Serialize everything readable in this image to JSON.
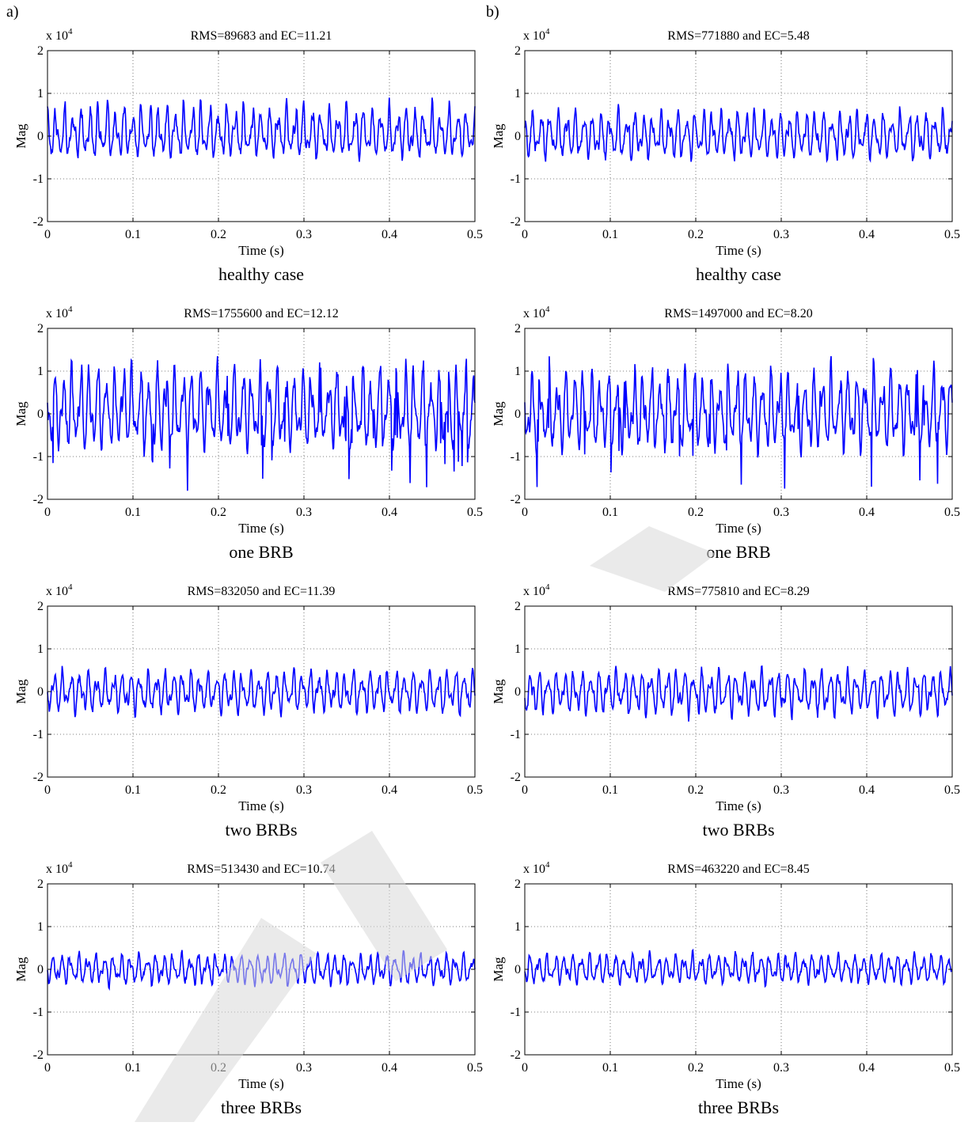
{
  "figure": {
    "panel_labels": [
      "a)",
      "b)"
    ],
    "x_tick_labels": [
      "0",
      "0.1",
      "0.2",
      "0.3",
      "0.4",
      "0.5"
    ],
    "y_tick_labels": [
      "2",
      "1",
      "0",
      "-1",
      "-2"
    ],
    "exponent_base": "x 10",
    "exponent_power": "4",
    "xlabel": "Time (s)",
    "ylabel": "Mag",
    "line_color": "#0000ff"
  },
  "chart_data": [
    {
      "type": "line",
      "column": "a",
      "title": "RMS=89683 and EC=11.21",
      "caption": "healthy case",
      "xlabel": "Time (s)",
      "ylabel": "Mag",
      "xlim": [
        0,
        0.5
      ],
      "ylim": [
        -20000,
        20000
      ],
      "y_scale": "x 10^4",
      "grid": true,
      "approx_amplitude": 6000,
      "min_value": -6000,
      "max_value": 9000
    },
    {
      "type": "line",
      "column": "b",
      "title": "RMS=771880 and EC=5.48",
      "caption": "healthy case",
      "xlabel": "Time (s)",
      "ylabel": "Mag",
      "xlim": [
        0,
        0.5
      ],
      "ylim": [
        -20000,
        20000
      ],
      "y_scale": "x 10^4",
      "grid": true,
      "approx_amplitude": 5000,
      "min_value": -6000,
      "max_value": 7500
    },
    {
      "type": "line",
      "column": "a",
      "title": "RMS=1755600 and EC=12.12",
      "caption": "one BRB",
      "xlabel": "Time (s)",
      "ylabel": "Mag",
      "xlim": [
        0,
        0.5
      ],
      "ylim": [
        -20000,
        20000
      ],
      "y_scale": "x 10^4",
      "grid": true,
      "approx_amplitude": 13000,
      "min_value": -18000,
      "max_value": 13500
    },
    {
      "type": "line",
      "column": "b",
      "title": "RMS=1497000 and EC=8.20",
      "caption": "one BRB",
      "xlabel": "Time (s)",
      "ylabel": "Mag",
      "xlim": [
        0,
        0.5
      ],
      "ylim": [
        -20000,
        20000
      ],
      "y_scale": "x 10^4",
      "grid": true,
      "approx_amplitude": 11000,
      "min_value": -17500,
      "max_value": 13500
    },
    {
      "type": "line",
      "column": "a",
      "title": "RMS=832050 and EC=11.39",
      "caption": "two BRBs",
      "xlabel": "Time (s)",
      "ylabel": "Mag",
      "xlim": [
        0,
        0.5
      ],
      "ylim": [
        -20000,
        20000
      ],
      "y_scale": "x 10^4",
      "grid": true,
      "approx_amplitude": 5000,
      "min_value": -6000,
      "max_value": 6000
    },
    {
      "type": "line",
      "column": "b",
      "title": "RMS=775810 and EC=8.29",
      "caption": "two BRBs",
      "xlabel": "Time (s)",
      "ylabel": "Mag",
      "xlim": [
        0,
        0.5
      ],
      "ylim": [
        -20000,
        20000
      ],
      "y_scale": "x 10^4",
      "grid": true,
      "approx_amplitude": 5000,
      "min_value": -7000,
      "max_value": 6000
    },
    {
      "type": "line",
      "column": "a",
      "title": "RMS=513430 and EC=10.74",
      "caption": "three BRBs",
      "xlabel": "Time (s)",
      "ylabel": "Mag",
      "xlim": [
        0,
        0.5
      ],
      "ylim": [
        -20000,
        20000
      ],
      "y_scale": "x 10^4",
      "grid": true,
      "approx_amplitude": 3000,
      "min_value": -4500,
      "max_value": 4500
    },
    {
      "type": "line",
      "column": "b",
      "title": "RMS=463220 and EC=8.45",
      "caption": "three BRBs",
      "xlabel": "Time (s)",
      "ylabel": "Mag",
      "xlim": [
        0,
        0.5
      ],
      "ylim": [
        -20000,
        20000
      ],
      "y_scale": "x 10^4",
      "grid": true,
      "approx_amplitude": 3000,
      "min_value": -4000,
      "max_value": 4500
    }
  ]
}
